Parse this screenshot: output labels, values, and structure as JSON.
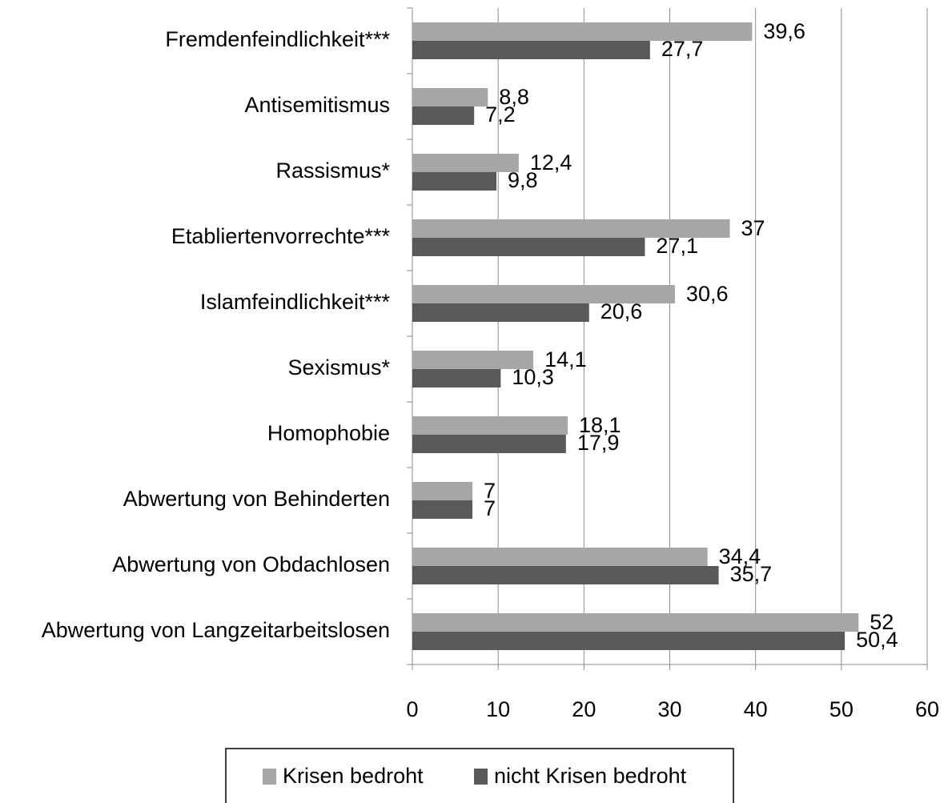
{
  "chart_data": {
    "type": "bar",
    "orientation": "horizontal",
    "categories": [
      "Fremdenfeindlichkeit***",
      "Antisemitismus",
      "Rassismus*",
      "Etabliertenvorrechte***",
      "Islamfeindlichkeit***",
      "Sexismus*",
      "Homophobie",
      "Abwertung von Behinderten",
      "Abwertung von Obdachlosen",
      "Abwertung von Langzeitarbeitslosen"
    ],
    "series": [
      {
        "name": "Krisen bedroht",
        "color": "#a6a6a6",
        "values": [
          39.6,
          8.8,
          12.4,
          37,
          30.6,
          14.1,
          18.1,
          7,
          34.4,
          52
        ],
        "value_labels": [
          "39,6",
          "8,8",
          "12,4",
          "37",
          "30,6",
          "14,1",
          "18,1",
          "7",
          "34,4",
          "52"
        ]
      },
      {
        "name": "nicht Krisen bedroht",
        "color": "#595959",
        "values": [
          27.7,
          7.2,
          9.8,
          27.1,
          20.6,
          10.3,
          17.9,
          7,
          35.7,
          50.4
        ],
        "value_labels": [
          "27,7",
          "7,2",
          "9,8",
          "27,1",
          "20,6",
          "10,3",
          "17,9",
          "7",
          "35,7",
          "50,4"
        ]
      }
    ],
    "xlim": [
      0,
      60
    ],
    "xticks": [
      0,
      10,
      20,
      30,
      40,
      50,
      60
    ],
    "grid": true,
    "legend": "bottom"
  }
}
